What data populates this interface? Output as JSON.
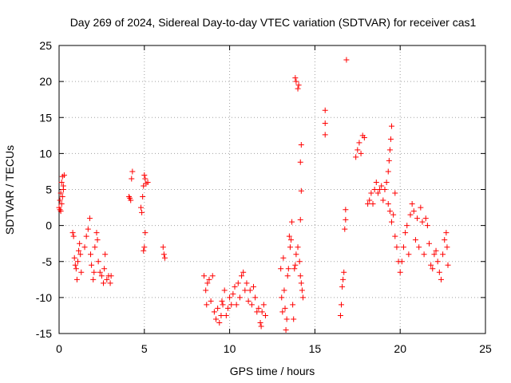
{
  "chart_data": {
    "type": "scatter",
    "title": "Day 269 of 2024, Sidereal Day-to-day VTEC variation (SDTVAR) for receiver cas1",
    "xlabel": "GPS time / hours",
    "ylabel": "SDTVAR / TECUs",
    "xlim": [
      0,
      25
    ],
    "ylim": [
      -15,
      25
    ],
    "xticks": [
      0,
      5,
      10,
      15,
      20,
      25
    ],
    "yticks": [
      -15,
      -10,
      -5,
      0,
      5,
      10,
      15,
      20,
      25
    ],
    "xtick_labels": [
      "0",
      "5",
      "10",
      "15",
      "20",
      "25"
    ],
    "ytick_labels": [
      "-15",
      "-10",
      "-5",
      "0",
      "5",
      "10",
      "15",
      "20",
      "25"
    ],
    "grid": true,
    "marker": "+",
    "marker_color": "#ff0000",
    "series": [
      {
        "name": "cas1",
        "points": [
          [
            0.0,
            2.5
          ],
          [
            0.05,
            3.5
          ],
          [
            0.1,
            4.5
          ],
          [
            0.15,
            6.0
          ],
          [
            0.2,
            6.8
          ],
          [
            0.25,
            5.5
          ],
          [
            0.3,
            7.0
          ],
          [
            0.1,
            2.0
          ],
          [
            0.15,
            3.0
          ],
          [
            0.2,
            4.0
          ],
          [
            0.25,
            5.0
          ],
          [
            0.05,
            2.2
          ],
          [
            0.8,
            -1.0
          ],
          [
            0.85,
            -1.5
          ],
          [
            0.9,
            -4.5
          ],
          [
            0.95,
            -5.5
          ],
          [
            1.0,
            -6.0
          ],
          [
            1.05,
            -7.5
          ],
          [
            1.1,
            -5.0
          ],
          [
            1.15,
            -3.5
          ],
          [
            1.2,
            -2.5
          ],
          [
            1.25,
            -4.0
          ],
          [
            1.3,
            -6.5
          ],
          [
            1.5,
            -3.0
          ],
          [
            1.6,
            -1.5
          ],
          [
            1.7,
            -0.5
          ],
          [
            1.8,
            1.0
          ],
          [
            1.85,
            -4.0
          ],
          [
            1.9,
            -5.5
          ],
          [
            2.0,
            -7.5
          ],
          [
            2.05,
            -6.5
          ],
          [
            2.1,
            -3.0
          ],
          [
            2.2,
            -1.0
          ],
          [
            2.25,
            -2.0
          ],
          [
            2.3,
            -5.0
          ],
          [
            2.4,
            -6.5
          ],
          [
            2.5,
            -7.0
          ],
          [
            2.6,
            -8.0
          ],
          [
            2.65,
            -6.0
          ],
          [
            2.7,
            -4.0
          ],
          [
            2.8,
            -7.5
          ],
          [
            2.9,
            -7.0
          ],
          [
            3.0,
            -8.0
          ],
          [
            3.05,
            -7.0
          ],
          [
            4.1,
            4.0
          ],
          [
            4.15,
            3.8
          ],
          [
            4.2,
            3.5
          ],
          [
            4.25,
            6.5
          ],
          [
            4.3,
            7.5
          ],
          [
            4.8,
            2.5
          ],
          [
            4.85,
            1.8
          ],
          [
            4.9,
            4.0
          ],
          [
            4.95,
            5.5
          ],
          [
            5.0,
            7.0
          ],
          [
            5.05,
            6.5
          ],
          [
            5.1,
            5.8
          ],
          [
            4.95,
            -3.5
          ],
          [
            5.0,
            -3.0
          ],
          [
            5.05,
            -1.0
          ],
          [
            5.2,
            6.0
          ],
          [
            6.1,
            -3.0
          ],
          [
            6.15,
            -4.0
          ],
          [
            6.2,
            -4.5
          ],
          [
            8.5,
            -7.0
          ],
          [
            8.6,
            -9.0
          ],
          [
            8.65,
            -11.0
          ],
          [
            8.7,
            -8.0
          ],
          [
            8.8,
            -7.5
          ],
          [
            8.9,
            -10.5
          ],
          [
            9.0,
            -7.0
          ],
          [
            9.1,
            -12.0
          ],
          [
            9.2,
            -13.0
          ],
          [
            9.3,
            -11.5
          ],
          [
            9.4,
            -13.5
          ],
          [
            9.5,
            -12.5
          ],
          [
            9.55,
            -10.5
          ],
          [
            9.6,
            -11.0
          ],
          [
            9.7,
            -9.0
          ],
          [
            9.8,
            -12.5
          ],
          [
            9.9,
            -11.5
          ],
          [
            10.0,
            -10.0
          ],
          [
            10.1,
            -11.0
          ],
          [
            10.2,
            -9.5
          ],
          [
            10.3,
            -8.5
          ],
          [
            10.4,
            -11.0
          ],
          [
            10.5,
            -8.0
          ],
          [
            10.6,
            -10.0
          ],
          [
            10.7,
            -7.0
          ],
          [
            10.8,
            -6.5
          ],
          [
            10.9,
            -9.0
          ],
          [
            11.0,
            -8.0
          ],
          [
            11.1,
            -10.5
          ],
          [
            11.2,
            -9.0
          ],
          [
            11.3,
            -11.0
          ],
          [
            11.4,
            -8.5
          ],
          [
            11.5,
            -10.0
          ],
          [
            11.6,
            -12.0
          ],
          [
            11.7,
            -11.5
          ],
          [
            11.8,
            -13.5
          ],
          [
            11.85,
            -14.0
          ],
          [
            11.9,
            -12.0
          ],
          [
            12.0,
            -11.0
          ],
          [
            12.1,
            -12.5
          ],
          [
            13.0,
            -6.0
          ],
          [
            13.05,
            -10.0
          ],
          [
            13.1,
            -12.0
          ],
          [
            13.15,
            -4.5
          ],
          [
            13.2,
            -9.0
          ],
          [
            13.25,
            -11.5
          ],
          [
            13.3,
            -14.5
          ],
          [
            13.35,
            -13.0
          ],
          [
            13.4,
            -7.0
          ],
          [
            13.45,
            -6.0
          ],
          [
            13.5,
            -1.5
          ],
          [
            13.55,
            -3.0
          ],
          [
            13.6,
            -2.0
          ],
          [
            13.65,
            0.5
          ],
          [
            13.7,
            -11.0
          ],
          [
            13.75,
            -13.0
          ],
          [
            13.8,
            -6.0
          ],
          [
            13.85,
            -5.5
          ],
          [
            13.9,
            -4.0
          ],
          [
            14.0,
            -3.0
          ],
          [
            14.1,
            -5.0
          ],
          [
            14.15,
            -7.0
          ],
          [
            14.2,
            -8.0
          ],
          [
            14.25,
            -9.0
          ],
          [
            14.3,
            -10.0
          ],
          [
            13.85,
            20.5
          ],
          [
            13.9,
            20.0
          ],
          [
            14.0,
            19.0
          ],
          [
            14.05,
            19.5
          ],
          [
            14.2,
            11.2
          ],
          [
            14.15,
            8.8
          ],
          [
            14.2,
            4.8
          ],
          [
            14.15,
            0.8
          ],
          [
            15.6,
            16.0
          ],
          [
            15.6,
            14.2
          ],
          [
            15.6,
            12.6
          ],
          [
            16.5,
            -12.5
          ],
          [
            16.55,
            -11.0
          ],
          [
            16.6,
            -8.5
          ],
          [
            16.65,
            -7.5
          ],
          [
            16.7,
            -6.5
          ],
          [
            16.75,
            -0.5
          ],
          [
            16.8,
            0.8
          ],
          [
            16.8,
            2.2
          ],
          [
            16.85,
            23.0
          ],
          [
            17.4,
            9.5
          ],
          [
            17.5,
            10.5
          ],
          [
            17.6,
            11.5
          ],
          [
            17.7,
            10.0
          ],
          [
            17.8,
            12.5
          ],
          [
            17.9,
            12.2
          ],
          [
            18.1,
            3.0
          ],
          [
            18.2,
            3.5
          ],
          [
            18.3,
            4.5
          ],
          [
            18.4,
            3.0
          ],
          [
            18.5,
            5.0
          ],
          [
            18.6,
            6.0
          ],
          [
            18.7,
            4.5
          ],
          [
            18.8,
            5.0
          ],
          [
            18.9,
            5.5
          ],
          [
            19.0,
            3.5
          ],
          [
            19.1,
            5.0
          ],
          [
            19.2,
            6.0
          ],
          [
            19.3,
            7.5
          ],
          [
            19.35,
            9.0
          ],
          [
            19.4,
            10.5
          ],
          [
            19.45,
            12.0
          ],
          [
            19.5,
            13.8
          ],
          [
            19.3,
            3.0
          ],
          [
            19.4,
            2.0
          ],
          [
            19.5,
            0.5
          ],
          [
            19.6,
            1.5
          ],
          [
            19.7,
            4.5
          ],
          [
            19.7,
            -1.5
          ],
          [
            19.8,
            -3.0
          ],
          [
            19.9,
            -5.0
          ],
          [
            20.0,
            -6.5
          ],
          [
            20.1,
            -5.0
          ],
          [
            20.2,
            -3.0
          ],
          [
            20.3,
            -1.0
          ],
          [
            20.4,
            0.0
          ],
          [
            20.5,
            -4.0
          ],
          [
            20.6,
            1.5
          ],
          [
            20.7,
            3.0
          ],
          [
            20.8,
            2.0
          ],
          [
            20.9,
            -2.0
          ],
          [
            21.0,
            1.0
          ],
          [
            21.1,
            -3.0
          ],
          [
            21.2,
            2.5
          ],
          [
            21.3,
            0.5
          ],
          [
            21.4,
            -4.0
          ],
          [
            21.5,
            1.0
          ],
          [
            21.6,
            0.0
          ],
          [
            21.7,
            -2.5
          ],
          [
            21.8,
            -5.5
          ],
          [
            21.9,
            -6.0
          ],
          [
            22.0,
            -4.0
          ],
          [
            22.1,
            -3.5
          ],
          [
            22.2,
            -5.0
          ],
          [
            22.3,
            -6.5
          ],
          [
            22.4,
            -7.5
          ],
          [
            22.5,
            -4.0
          ],
          [
            22.6,
            -2.0
          ],
          [
            22.7,
            -1.0
          ],
          [
            22.75,
            -3.0
          ],
          [
            22.8,
            -5.5
          ]
        ]
      }
    ]
  }
}
